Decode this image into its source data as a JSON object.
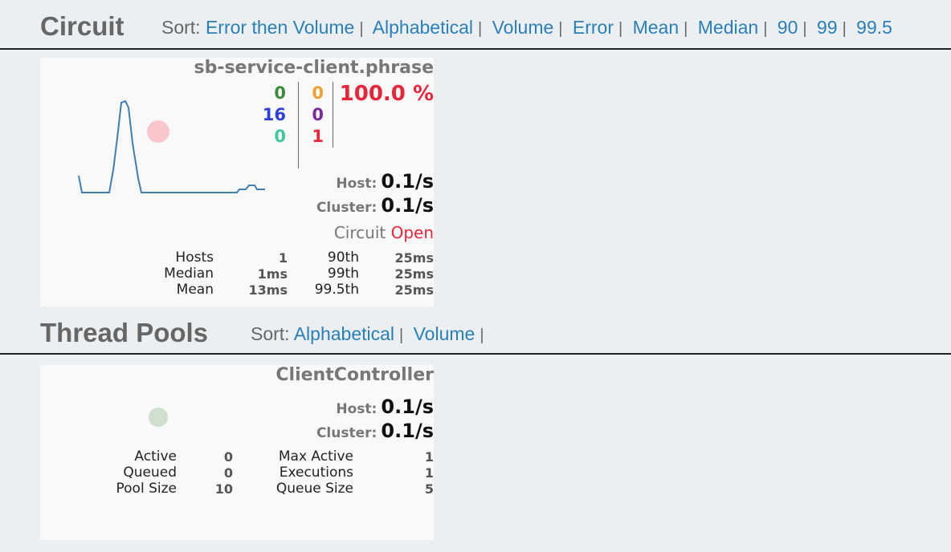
{
  "circuit_section": {
    "title": "Circuit",
    "sort_label": "Sort:",
    "sort_options": [
      "Error then Volume",
      "Alphabetical",
      "Volume",
      "Error",
      "Mean",
      "Median",
      "90",
      "99",
      "99.5"
    ]
  },
  "circuit_panel": {
    "name": "sb-service-client.phrase",
    "counts": {
      "success": "0",
      "short_circuited": "16",
      "bad_request": "0",
      "timeout": "0",
      "rejected": "0",
      "failure": "1"
    },
    "error_percentage": "100.0 %",
    "host_label": "Host:",
    "host_rate": "0.1/s",
    "cluster_label": "Cluster:",
    "cluster_rate": "0.1/s",
    "circuit_label": "Circuit",
    "circuit_status": "Open",
    "stats": {
      "hosts_label": "Hosts",
      "hosts_value": "1",
      "median_label": "Median",
      "median_value": "1ms",
      "mean_label": "Mean",
      "mean_value": "13ms",
      "p90_label": "90th",
      "p90_value": "25ms",
      "p99_label": "99th",
      "p99_value": "25ms",
      "p995_label": "99.5th",
      "p995_value": "25ms"
    },
    "colors": {
      "success": "#3a8a3a",
      "short_circuited": "#2f3fe0",
      "bad_request": "#3cc9a0",
      "timeout": "#f0a030",
      "rejected": "#7a2b9c",
      "failure": "#e8263a",
      "open": "#e8263a",
      "health_circle": "#f9c6cb",
      "sparkline": "#3e7fb3"
    }
  },
  "thread_section": {
    "title": "Thread Pools",
    "sort_label": "Sort:",
    "sort_options": [
      "Alphabetical",
      "Volume"
    ]
  },
  "thread_panel": {
    "name": "ClientController",
    "host_label": "Host:",
    "host_rate": "0.1/s",
    "cluster_label": "Cluster:",
    "cluster_rate": "0.1/s",
    "stats": {
      "active_label": "Active",
      "active_value": "0",
      "queued_label": "Queued",
      "queued_value": "0",
      "pool_size_label": "Pool Size",
      "pool_size_value": "10",
      "max_active_label": "Max Active",
      "max_active_value": "1",
      "executions_label": "Executions",
      "executions_value": "1",
      "queue_size_label": "Queue Size",
      "queue_size_value": "5"
    },
    "colors": {
      "health_circle": "#cfe0cf"
    }
  }
}
